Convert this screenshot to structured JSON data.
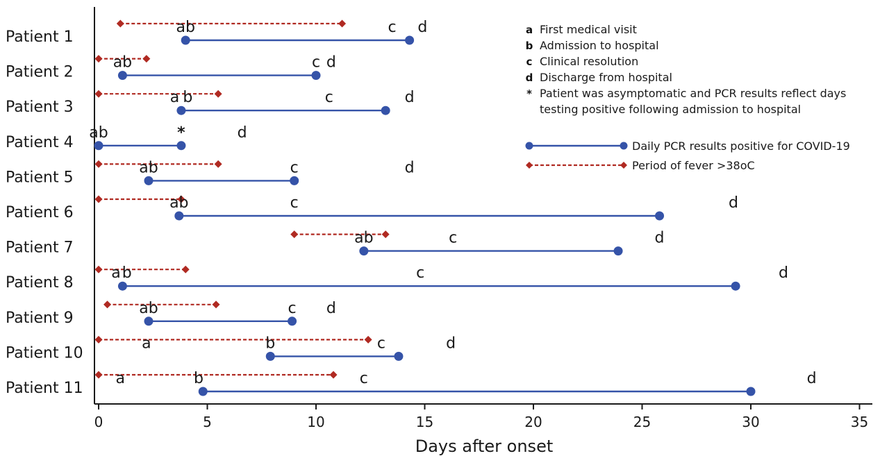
{
  "chart_data": {
    "type": "timeline",
    "xlabel": "Days after onset",
    "xlim": [
      0,
      35
    ],
    "xticks": [
      0,
      5,
      10,
      15,
      20,
      25,
      30,
      35
    ],
    "colors": {
      "pcr": "#3553a8",
      "fever": "#b02a22",
      "event_a_highlight": "#3553a8",
      "asymptomatic_star": "#3aa88a",
      "axis": "#1a1a1a"
    },
    "legend": {
      "position": "top-right",
      "events": [
        {
          "key": "a",
          "label": "First medical visit"
        },
        {
          "key": "b",
          "label": "Admission to hospital"
        },
        {
          "key": "c",
          "label": "Clinical resolution"
        },
        {
          "key": "d",
          "label": "Discharge from hospital"
        },
        {
          "key": "*",
          "label": "Patient was asymptomatic and PCR results reflect days",
          "label2": "testing positive following admission to hospital"
        }
      ],
      "series": [
        {
          "name": "Daily PCR results positive for COVID-19",
          "style": "pcr"
        },
        {
          "name": "Period of fever >38oC",
          "style": "fever"
        }
      ]
    },
    "patients": [
      {
        "name": "Patient 1",
        "fever": [
          1,
          11.2
        ],
        "pcr": [
          4,
          14.3
        ],
        "events": [
          {
            "t": "ab",
            "x": 4
          },
          {
            "t": "c",
            "x": 13.5
          },
          {
            "t": "d",
            "x": 14.9
          }
        ]
      },
      {
        "name": "Patient 2",
        "fever": [
          0,
          2.2
        ],
        "pcr": [
          1.1,
          10
        ],
        "events": [
          {
            "t": "ab",
            "x": 1.1
          },
          {
            "t": "c",
            "x": 10
          },
          {
            "t": "d",
            "x": 10.7
          }
        ]
      },
      {
        "name": "Patient 3",
        "fever": [
          0,
          5.5
        ],
        "pcr": [
          3.8,
          13.2
        ],
        "events": [
          {
            "t": "a",
            "x": 3.5,
            "hl": true
          },
          {
            "t": "b",
            "x": 4.1
          },
          {
            "t": "c",
            "x": 10.6
          },
          {
            "t": "d",
            "x": 14.3
          }
        ]
      },
      {
        "name": "Patient 4",
        "pcr": [
          0,
          3.8
        ],
        "events": [
          {
            "t": "ab",
            "x": 0
          },
          {
            "t": "*",
            "x": 3.8,
            "star": true
          },
          {
            "t": "d",
            "x": 6.6
          }
        ]
      },
      {
        "name": "Patient 5",
        "fever": [
          0,
          5.5
        ],
        "pcr": [
          2.3,
          9
        ],
        "events": [
          {
            "t": "ab",
            "x": 2.3
          },
          {
            "t": "c",
            "x": 9
          },
          {
            "t": "d",
            "x": 14.3
          }
        ]
      },
      {
        "name": "Patient 6",
        "fever": [
          0,
          3.8
        ],
        "pcr": [
          3.7,
          25.8
        ],
        "events": [
          {
            "t": "ab",
            "x": 3.7
          },
          {
            "t": "c",
            "x": 9
          },
          {
            "t": "d",
            "x": 29.2
          }
        ]
      },
      {
        "name": "Patient 7",
        "fever": [
          9,
          13.2
        ],
        "pcr": [
          12.2,
          23.9
        ],
        "events": [
          {
            "t": "ab",
            "x": 12.2
          },
          {
            "t": "c",
            "x": 16.3
          },
          {
            "t": "d",
            "x": 25.8
          }
        ]
      },
      {
        "name": "Patient 8",
        "fever": [
          0,
          4
        ],
        "pcr": [
          1.1,
          29.3
        ],
        "events": [
          {
            "t": "a",
            "x": 0.8,
            "hl": true
          },
          {
            "t": "b",
            "x": 1.3
          },
          {
            "t": "c",
            "x": 14.8
          },
          {
            "t": "d",
            "x": 31.5
          }
        ]
      },
      {
        "name": "Patient 9",
        "fever": [
          0.4,
          5.4
        ],
        "pcr": [
          2.3,
          8.9
        ],
        "events": [
          {
            "t": "ab",
            "x": 2.3
          },
          {
            "t": "c",
            "x": 8.9
          },
          {
            "t": "d",
            "x": 10.7
          }
        ]
      },
      {
        "name": "Patient 10",
        "fever": [
          0,
          12.4
        ],
        "pcr": [
          7.9,
          13.8
        ],
        "events": [
          {
            "t": "a",
            "x": 2.2
          },
          {
            "t": "b",
            "x": 7.9
          },
          {
            "t": "c",
            "x": 13
          },
          {
            "t": "d",
            "x": 16.2
          }
        ]
      },
      {
        "name": "Patient 11",
        "fever": [
          0,
          10.8
        ],
        "pcr": [
          4.8,
          30
        ],
        "events": [
          {
            "t": "a",
            "x": 1
          },
          {
            "t": "b",
            "x": 4.6
          },
          {
            "t": "c",
            "x": 12.2
          },
          {
            "t": "d",
            "x": 32.8
          }
        ]
      }
    ]
  }
}
